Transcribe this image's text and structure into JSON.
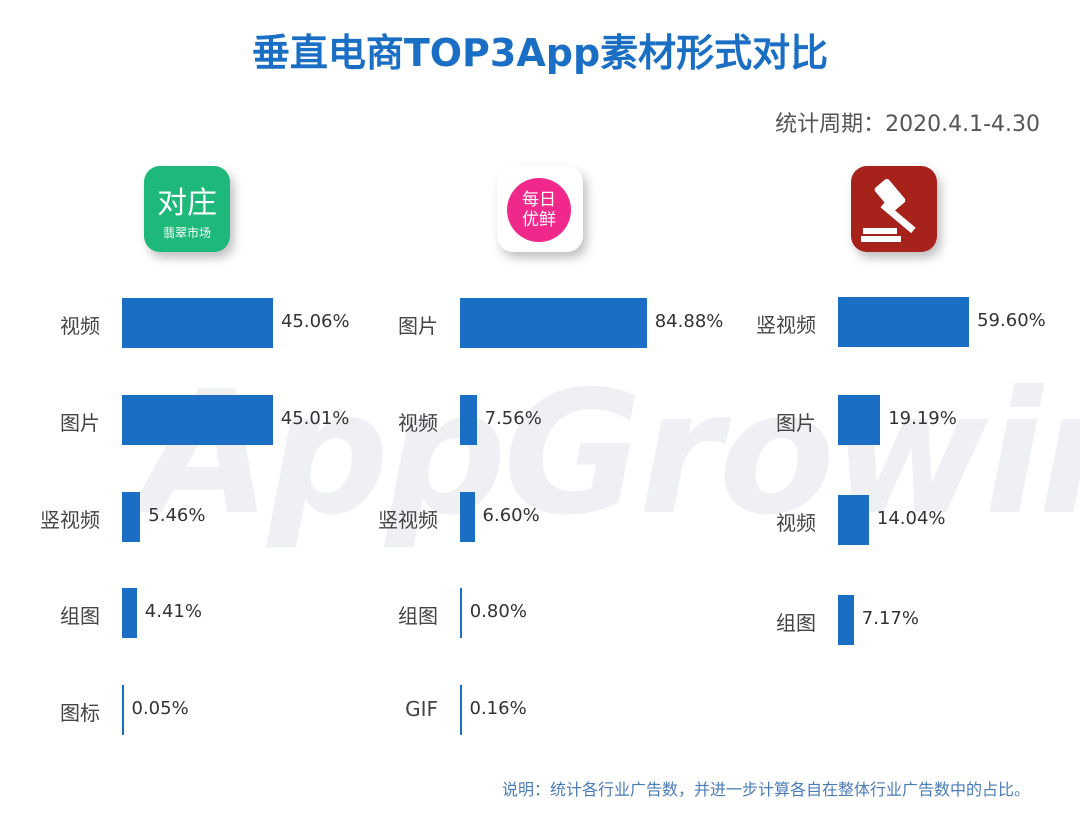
{
  "title": "垂直电商TOP3App素材形式对比",
  "period": "统计周期：2020.4.1-4.30",
  "watermark": "AppGrowing",
  "note": "说明：统计各行业广告数，并进一步计算各自在整体行业广告数中的占比。",
  "colors": {
    "bar": "#1a6fc4",
    "title": "#1a6fc4"
  },
  "apps": [
    {
      "icon_text": "对庄",
      "icon_sub": "翡翠市场",
      "icon_color": "#1db87a"
    },
    {
      "icon_text": "每日",
      "icon_sub": "优鲜",
      "icon_color": "#f0288c"
    },
    {
      "icon_name": "auction-hammer-icon",
      "icon_color": "#a8221c"
    }
  ],
  "chart_data": [
    {
      "type": "bar",
      "orientation": "horizontal",
      "unit": "%",
      "categories": [
        "视频",
        "图片",
        "竖视频",
        "组图",
        "图标"
      ],
      "values": [
        45.06,
        45.01,
        5.46,
        4.41,
        0.05
      ],
      "labels": [
        "45.06%",
        "45.01%",
        "5.46%",
        "4.41%",
        "0.05%"
      ]
    },
    {
      "type": "bar",
      "orientation": "horizontal",
      "unit": "%",
      "categories": [
        "图片",
        "视频",
        "竖视频",
        "组图",
        "GIF"
      ],
      "values": [
        84.88,
        7.56,
        6.6,
        0.8,
        0.16
      ],
      "labels": [
        "84.88%",
        "7.56%",
        "6.60%",
        "0.80%",
        "0.16%"
      ]
    },
    {
      "type": "bar",
      "orientation": "horizontal",
      "unit": "%",
      "categories": [
        "竖视频",
        "图片",
        "视频",
        "组图"
      ],
      "values": [
        59.6,
        19.19,
        14.04,
        7.17
      ],
      "labels": [
        "59.60%",
        "19.19%",
        "14.04%",
        "7.17%"
      ]
    }
  ]
}
